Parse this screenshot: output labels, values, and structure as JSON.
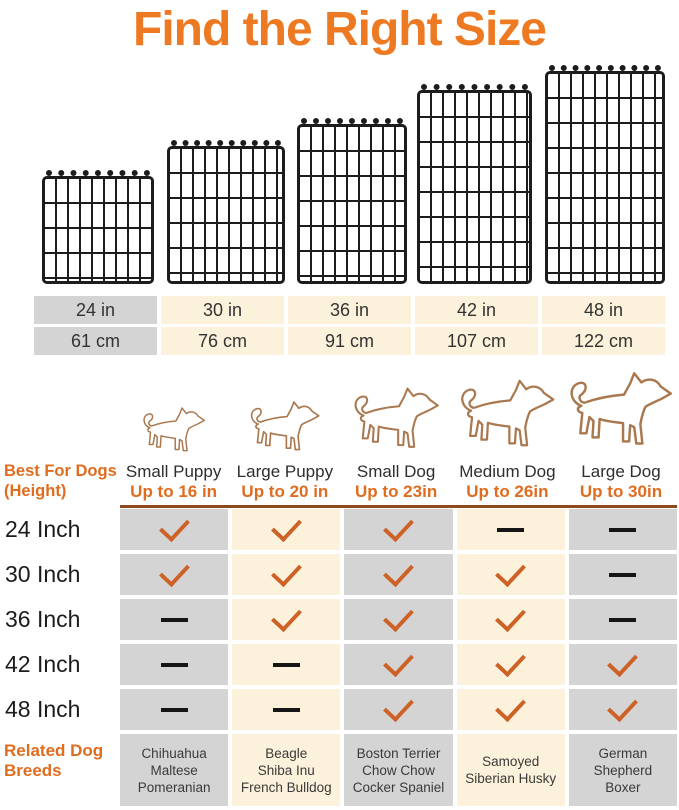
{
  "title": "Find the Right Size",
  "colors": {
    "accent_orange": "#ed7a23",
    "label_orange": "#e06c1f",
    "check_orange": "#cd6227",
    "cell_gray": "#d4d4d4",
    "cell_cream": "#fcf1da",
    "rule_brown": "#8d4a1f",
    "dog_outline": "#a9784f"
  },
  "crates": {
    "icon": "wire-crate-panel-icon",
    "count": 5
  },
  "size_table": {
    "inches": [
      "24 in",
      "30 in",
      "36 in",
      "42 in",
      "48 in"
    ],
    "centimeters": [
      "61 cm",
      "76 cm",
      "91 cm",
      "107 cm",
      "122 cm"
    ]
  },
  "columns": [
    {
      "dog_type": "Small Puppy",
      "height_limit": "Up to 16 in",
      "icon": "small-puppy-outline-icon"
    },
    {
      "dog_type": "Large Puppy",
      "height_limit": "Up to 20 in",
      "icon": "large-puppy-outline-icon"
    },
    {
      "dog_type": "Small Dog",
      "height_limit": "Up to 23in",
      "icon": "small-dog-outline-icon"
    },
    {
      "dog_type": "Medium Dog",
      "height_limit": "Up to 26in",
      "icon": "medium-dog-outline-icon"
    },
    {
      "dog_type": "Large Dog",
      "height_limit": "Up to 30in",
      "icon": "large-dog-outline-icon"
    }
  ],
  "left_labels": {
    "best_for_line1": "Best For Dogs",
    "best_for_line2": "(Height)",
    "related_line1": "Related Dog",
    "related_line2": "Breeds"
  },
  "rows": [
    {
      "label": "24 Inch",
      "marks": [
        "check",
        "check",
        "check",
        "dash",
        "dash"
      ]
    },
    {
      "label": "30 Inch",
      "marks": [
        "check",
        "check",
        "check",
        "check",
        "dash"
      ]
    },
    {
      "label": "36 Inch",
      "marks": [
        "dash",
        "check",
        "check",
        "check",
        "dash"
      ]
    },
    {
      "label": "42 Inch",
      "marks": [
        "dash",
        "dash",
        "check",
        "check",
        "check"
      ]
    },
    {
      "label": "48 Inch",
      "marks": [
        "dash",
        "dash",
        "check",
        "check",
        "check"
      ]
    }
  ],
  "breeds": [
    [
      "Chihuahua",
      "Maltese",
      "Pomeranian"
    ],
    [
      "Beagle",
      "Shiba Inu",
      "French Bulldog"
    ],
    [
      "Boston Terrier",
      "Chow Chow",
      "Cocker Spaniel"
    ],
    [
      "Samoyed",
      "Siberian Husky"
    ],
    [
      "German",
      "Shepherd",
      "Boxer"
    ]
  ]
}
